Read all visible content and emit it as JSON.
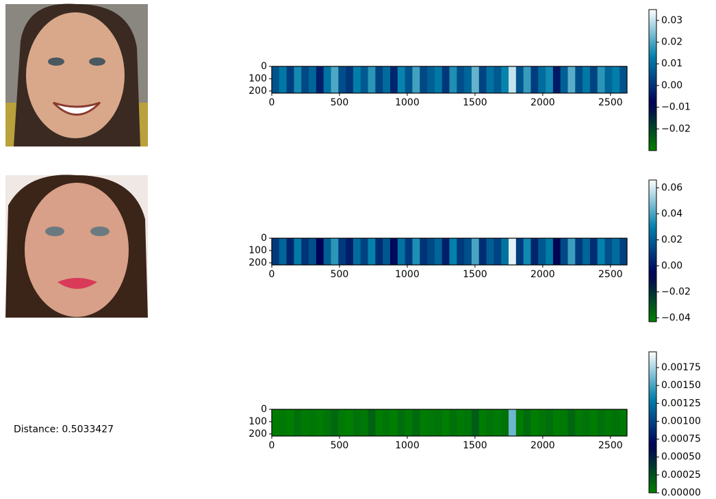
{
  "chart_data": [
    {
      "type": "heatmap",
      "colormap": "ocean",
      "xlim": [
        0,
        2622
      ],
      "ylim": [
        0,
        217
      ],
      "xticks": [
        0,
        500,
        1000,
        1500,
        2000,
        2500
      ],
      "yticks": [
        0,
        100,
        200
      ],
      "clim": [
        -0.03,
        0.035
      ],
      "cticks": [
        0.03,
        0.02,
        0.01,
        {
          "value": 0,
          "label": "0.00"
        },
        {
          "value": -0.01,
          "label": "−0.01"
        },
        {
          "value": -0.02,
          "label": "−0.02"
        }
      ],
      "values": [
        0.006,
        0.012,
        0.002,
        0.015,
        0.004,
        0.009,
        -0.003,
        0.011,
        0.02,
        0.005,
        0.001,
        0.013,
        0.007,
        0.017,
        0.003,
        0.01,
        -0.002,
        0.014,
        0.006,
        0.019,
        0.004,
        0.008,
        0.012,
        0.001,
        0.016,
        0.005,
        0.009,
        0.022,
        0.003,
        0.011,
        0.007,
        0.014,
        0.03,
        0.006,
        0.018,
        0.002,
        0.01,
        0.015,
        -0.004,
        0.008,
        0.021,
        0.005,
        0.012,
        0.003,
        0.017,
        0.009,
        0.013,
        0.006
      ]
    },
    {
      "type": "heatmap",
      "colormap": "ocean",
      "xlim": [
        0,
        2622
      ],
      "ylim": [
        0,
        217
      ],
      "xticks": [
        0,
        500,
        1000,
        1500,
        2000,
        2500
      ],
      "yticks": [
        0,
        100,
        200
      ],
      "clim": [
        -0.043,
        0.066
      ],
      "cticks": [
        0.06,
        0.04,
        0.02,
        {
          "value": 0,
          "label": "0.00"
        },
        {
          "value": -0.02,
          "label": "−0.02"
        },
        {
          "value": -0.04,
          "label": "−0.04"
        }
      ],
      "values": [
        0.01,
        0.022,
        0.004,
        0.028,
        0.008,
        0.016,
        -0.006,
        0.02,
        0.036,
        0.01,
        0.002,
        0.024,
        0.012,
        0.03,
        0.006,
        0.018,
        -0.004,
        0.026,
        0.01,
        0.034,
        0.008,
        0.014,
        0.022,
        0.002,
        0.03,
        0.01,
        0.016,
        0.04,
        0.006,
        0.02,
        0.012,
        0.026,
        0.062,
        0.01,
        0.032,
        0.004,
        0.018,
        0.028,
        -0.008,
        0.014,
        0.038,
        0.01,
        0.022,
        0.006,
        0.03,
        0.016,
        0.024,
        0.012
      ]
    },
    {
      "type": "heatmap",
      "colormap": "ocean",
      "annotation": "Distance: 0.5033427",
      "xlim": [
        0,
        2622
      ],
      "ylim": [
        0,
        217
      ],
      "xticks": [
        0,
        500,
        1000,
        1500,
        2000,
        2500
      ],
      "yticks": [
        0,
        100,
        200
      ],
      "clim": [
        0,
        0.00197
      ],
      "cticks": [
        0.00175,
        {
          "value": 0.0015,
          "label": "0.00150"
        },
        0.00125,
        {
          "value": 0.001,
          "label": "0.00100"
        },
        0.00075,
        {
          "value": 0.0005,
          "label": "0.00050"
        },
        0.00025,
        {
          "value": 0,
          "label": "0.00000"
        }
      ],
      "values": [
        2e-05,
        4e-05,
        1e-05,
        8e-05,
        3e-05,
        5e-05,
        2e-05,
        6e-05,
        0.00012,
        3e-05,
        1e-05,
        7e-05,
        4e-05,
        0.00015,
        2e-05,
        5e-05,
        1e-05,
        9e-05,
        3e-05,
        0.00011,
        2e-05,
        4e-05,
        6e-05,
        1e-05,
        8e-05,
        3e-05,
        5e-05,
        0.00018,
        2e-05,
        6e-05,
        3e-05,
        7e-05,
        0.0016,
        2e-05,
        0.0001,
        1e-05,
        5e-05,
        9e-05,
        2e-05,
        4e-05,
        0.00013,
        3e-05,
        6e-05,
        2e-05,
        8e-05,
        4e-05,
        7e-05,
        3e-05
      ]
    }
  ]
}
